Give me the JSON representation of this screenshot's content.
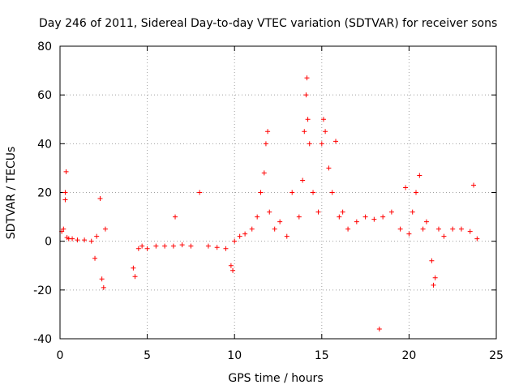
{
  "chart_data": {
    "type": "scatter",
    "title": "Day 246 of 2011, Sidereal Day-to-day VTEC variation (SDTVAR) for receiver sons",
    "xlabel": "GPS time / hours",
    "ylabel": "SDTVAR / TECUs",
    "xlim": [
      0,
      25
    ],
    "ylim": [
      -40,
      80
    ],
    "x_ticks": [
      0,
      5,
      10,
      15,
      20,
      25
    ],
    "y_ticks": [
      -40,
      -20,
      0,
      20,
      40,
      60,
      80
    ],
    "grid": true,
    "marker": "+",
    "color": "#ff0000",
    "series": [
      {
        "name": "SDTVAR",
        "x": [
          0.1,
          0.2,
          0.3,
          0.3,
          0.35,
          0.4,
          0.5,
          0.7,
          1.0,
          1.4,
          1.8,
          2.0,
          2.1,
          2.3,
          2.4,
          2.5,
          2.6,
          4.2,
          4.3,
          4.5,
          4.7,
          5.0,
          5.5,
          6.0,
          6.5,
          6.6,
          7.0,
          7.5,
          8.0,
          8.5,
          9.0,
          9.5,
          9.8,
          9.9,
          10.0,
          10.3,
          10.6,
          11.0,
          11.3,
          11.5,
          11.7,
          11.8,
          11.9,
          12.0,
          12.3,
          12.6,
          13.0,
          13.3,
          13.7,
          13.9,
          14.0,
          14.1,
          14.15,
          14.2,
          14.3,
          14.5,
          14.8,
          15.0,
          15.1,
          15.2,
          15.4,
          15.6,
          15.8,
          16.0,
          16.2,
          16.5,
          17.0,
          17.5,
          18.0,
          18.3,
          18.5,
          19.0,
          19.5,
          19.8,
          20.0,
          20.2,
          20.4,
          20.6,
          20.8,
          21.0,
          21.3,
          21.4,
          21.5,
          21.7,
          22.0,
          22.5,
          23.0,
          23.5,
          23.7,
          23.9
        ],
        "y": [
          4,
          5,
          20,
          17,
          28.5,
          1.5,
          1,
          1,
          0.5,
          0.5,
          0,
          -7,
          2,
          17.5,
          -15.5,
          -19,
          5,
          -11,
          -14.5,
          -3,
          -2,
          -3,
          -2,
          -2,
          -2,
          10,
          -1.5,
          -2,
          20,
          -2,
          -2.5,
          -3,
          -10,
          -12,
          0,
          2,
          3,
          5,
          10,
          20,
          28,
          40,
          45,
          12,
          5,
          8,
          2,
          20,
          10,
          25,
          45,
          60,
          67,
          50,
          40,
          20,
          12,
          40,
          50,
          45,
          30,
          20,
          41,
          10,
          12,
          5,
          8,
          10,
          9,
          -36,
          10,
          12,
          5,
          22,
          3,
          12,
          20,
          27,
          5,
          8,
          -8,
          -18,
          -15,
          5,
          2,
          5,
          5,
          4,
          23,
          1
        ]
      }
    ]
  }
}
